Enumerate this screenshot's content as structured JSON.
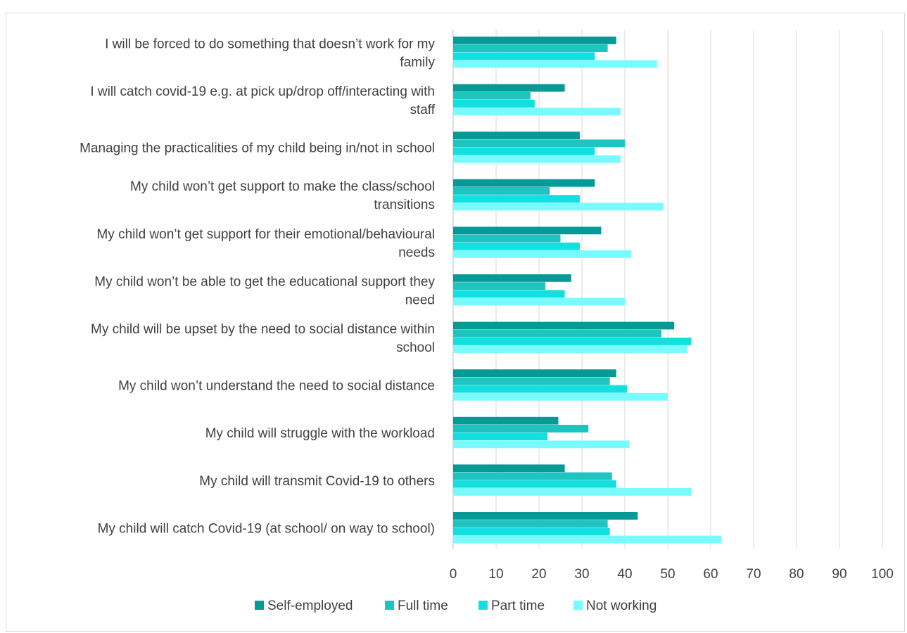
{
  "chart_data": {
    "type": "bar",
    "orientation": "horizontal",
    "title": "",
    "xlabel": "",
    "ylabel": "",
    "xlim": [
      0,
      100
    ],
    "xticks": [
      "0",
      "10",
      "20",
      "30",
      "40",
      "50",
      "60",
      "70",
      "80",
      "90",
      "100"
    ],
    "grid": "vertical",
    "legend_position": "bottom",
    "categories": [
      [
        "I will be forced to do something that doesn’t work for my",
        "family"
      ],
      [
        "I will catch covid-19 e.g. at pick up/drop off/interacting with",
        "staff"
      ],
      [
        "Managing the practicalities of my child being in/not in school"
      ],
      [
        "My child won’t get support to make the class/school",
        "transitions"
      ],
      [
        "My child won’t get  support for their emotional/behavioural",
        "needs"
      ],
      [
        "My child won’t be able to get the educational support they",
        "need"
      ],
      [
        "My child will be upset by the need to social distance within",
        "school"
      ],
      [
        "My child won’t understand the need to social distance"
      ],
      [
        "My child will struggle with the workload"
      ],
      [
        "My child will transmit Covid-19 to others"
      ],
      [
        "My child will catch Covid-19 (at school/ on way to school)"
      ]
    ],
    "series": [
      {
        "name": "Self-employed",
        "color": "#069a96",
        "values": [
          38,
          26,
          29.5,
          33,
          34.5,
          27.5,
          51.5,
          38,
          24.5,
          26,
          43
        ]
      },
      {
        "name": "Full time",
        "color": "#1dc4c0",
        "values": [
          36,
          18,
          40,
          22.5,
          25,
          21.5,
          48.5,
          36.5,
          31.5,
          37,
          36
        ]
      },
      {
        "name": "Part time",
        "color": "#12e0e0",
        "values": [
          33,
          19,
          33,
          29.5,
          29.5,
          26,
          55.5,
          40.5,
          22,
          38,
          36.5
        ]
      },
      {
        "name": "Not working",
        "color": "#77fbff",
        "values": [
          47.5,
          39,
          39,
          49,
          41.5,
          40,
          54.5,
          50,
          41,
          55.5,
          62.5
        ]
      }
    ]
  }
}
